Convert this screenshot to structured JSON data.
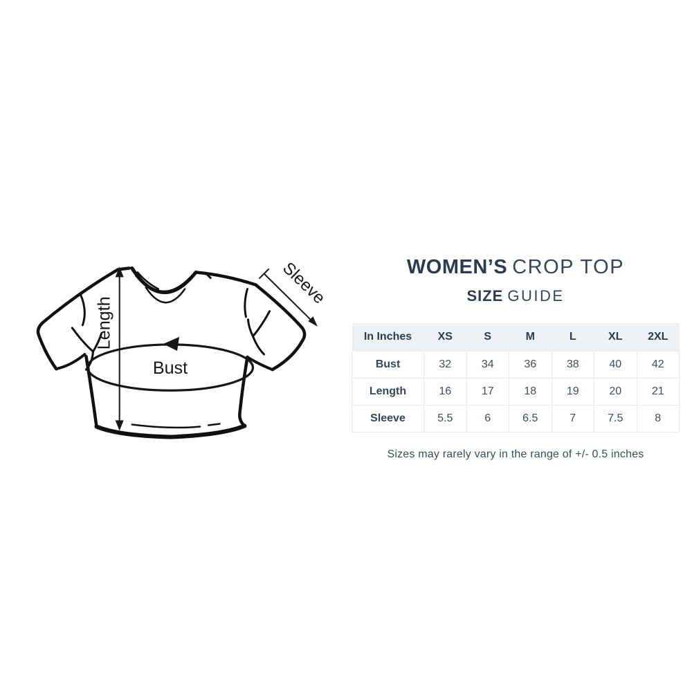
{
  "title": {
    "bold": "WOMEN’S",
    "light": "CROP TOP"
  },
  "subtitle": {
    "bold": "SIZE",
    "light": "GUIDE"
  },
  "diagram": {
    "labels": {
      "length": "Length",
      "bust": "Bust",
      "sleeve": "Sleeve"
    }
  },
  "size_table": {
    "header": [
      "In Inches",
      "XS",
      "S",
      "M",
      "L",
      "XL",
      "2XL"
    ],
    "rows": [
      {
        "label": "Bust",
        "values": [
          "32",
          "34",
          "36",
          "38",
          "40",
          "42"
        ]
      },
      {
        "label": "Length",
        "values": [
          "16",
          "17",
          "18",
          "19",
          "20",
          "21"
        ]
      },
      {
        "label": "Sleeve",
        "values": [
          "5.5",
          "6",
          "6.5",
          "7",
          "7.5",
          "8"
        ]
      }
    ]
  },
  "footnote": "Sizes may rarely vary in the range of +/- 0.5 inches",
  "colors": {
    "text_navy": "#2b3b52",
    "table_text": "#3a4d63",
    "header_bg": "#eef1f4",
    "border": "#e7ebef",
    "ink": "#111111",
    "background": "#ffffff"
  }
}
